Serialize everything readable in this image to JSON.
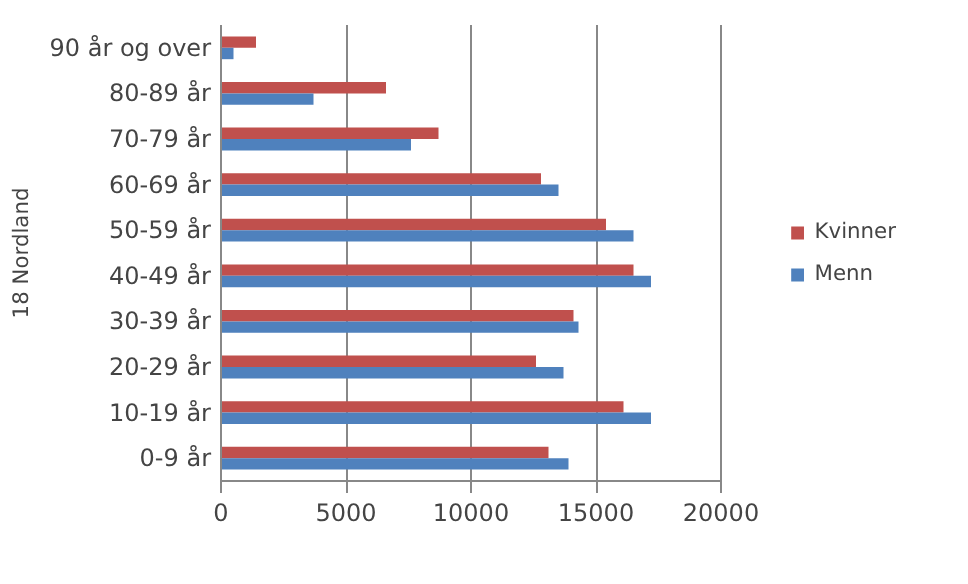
{
  "chart_data": {
    "type": "bar",
    "orientation": "horizontal",
    "ylabel": "18 Nordland",
    "categories": [
      "90 år og over",
      "80-89 år",
      "70-79 år",
      "60-69 år",
      "50-59 år",
      "40-49 år",
      "30-39 år",
      "20-29 år",
      "10-19 år",
      "0-9 år"
    ],
    "series": [
      {
        "name": "Kvinner",
        "color": "#c0504d",
        "values": [
          1400,
          6600,
          8700,
          12800,
          15400,
          16500,
          14100,
          12600,
          16100,
          13100
        ]
      },
      {
        "name": "Menn",
        "color": "#4f81bd",
        "values": [
          500,
          3700,
          7600,
          13500,
          16500,
          17200,
          14300,
          13700,
          17200,
          13900
        ]
      }
    ],
    "xlim": [
      0,
      20000
    ],
    "xticks": [
      0,
      5000,
      10000,
      15000,
      20000
    ],
    "grid": "x",
    "legend": "right"
  }
}
